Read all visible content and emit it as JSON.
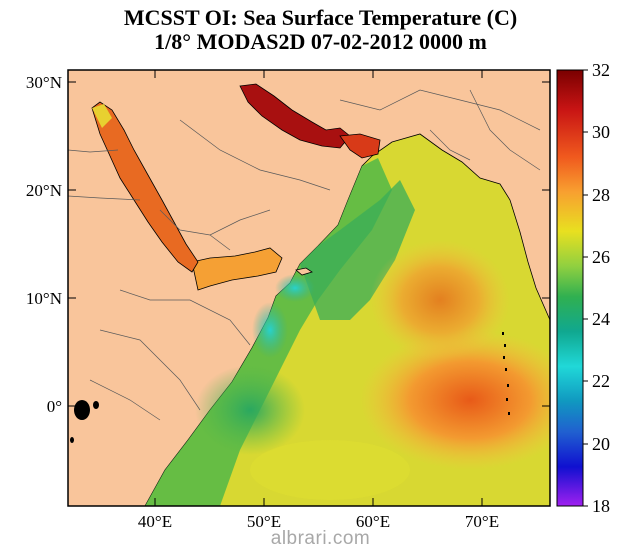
{
  "header": {
    "title_line1": "MCSST OI:  Sea Surface Temperature (C)",
    "title_line2": "1/8° MODAS2D 07-02-2012 0000 m"
  },
  "map": {
    "lat_labels": [
      "30°N",
      "20°N",
      "10°N",
      "0°"
    ],
    "lon_labels": [
      "40°E",
      "50°E",
      "60°E",
      "70°E"
    ],
    "colors": {
      "land": "#f9c59b",
      "coastline": "#000000",
      "border": "#6b6b6b"
    }
  },
  "colorbar": {
    "labels": [
      "32",
      "30",
      "28",
      "26",
      "24",
      "22",
      "20",
      "18"
    ],
    "colors": [
      "#7a0000",
      "#c81414",
      "#f05a1e",
      "#f8a030",
      "#e8e020",
      "#90d040",
      "#30b050",
      "#10a890",
      "#20d8d8",
      "#2060d0",
      "#1010d0",
      "#a020f0"
    ]
  },
  "watermark": "albrari.com"
}
